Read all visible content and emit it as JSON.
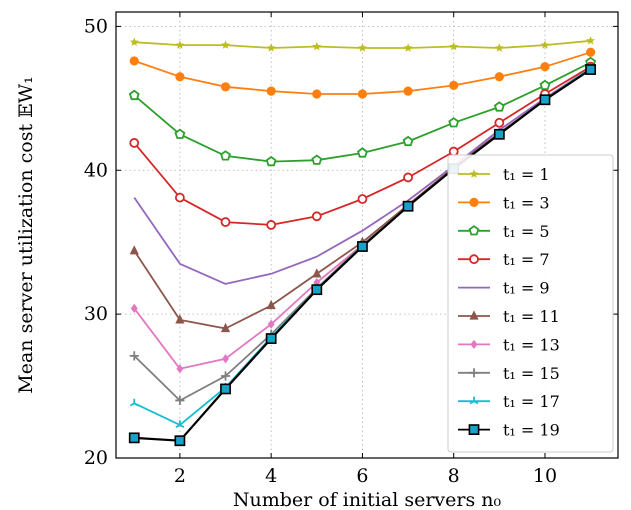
{
  "chart_data": {
    "type": "line",
    "xlabel": "Number of initial servers n₀",
    "ylabel": "Mean server utilization cost 𝔼W₁",
    "xlim": [
      0.6,
      11.6
    ],
    "ylim": [
      20,
      51
    ],
    "xticks": [
      2,
      4,
      6,
      8,
      10
    ],
    "yticks": [
      20,
      30,
      40,
      50
    ],
    "grid": true,
    "legend_position": "right",
    "x": [
      1,
      2,
      3,
      4,
      5,
      6,
      7,
      8,
      9,
      10,
      11
    ],
    "series": [
      {
        "name": "t₁ = 1",
        "color": "#bcbd22",
        "marker": "star",
        "values": [
          48.9,
          48.7,
          48.7,
          48.5,
          48.6,
          48.5,
          48.5,
          48.6,
          48.5,
          48.7,
          49.0
        ]
      },
      {
        "name": "t₁ = 3",
        "color": "#ff7f0e",
        "marker": "circle",
        "values": [
          47.6,
          46.5,
          45.8,
          45.5,
          45.3,
          45.3,
          45.5,
          45.9,
          46.5,
          47.2,
          48.2
        ]
      },
      {
        "name": "t₁ = 5",
        "color": "#2ca02c",
        "marker": "pentagon",
        "values": [
          45.2,
          42.5,
          41.0,
          40.6,
          40.7,
          41.2,
          42.0,
          43.3,
          44.4,
          45.9,
          47.5
        ]
      },
      {
        "name": "t₁ = 7",
        "color": "#d62728",
        "marker": "ocircle",
        "values": [
          41.9,
          38.1,
          36.4,
          36.2,
          36.8,
          38.0,
          39.5,
          41.3,
          43.3,
          45.3,
          47.2
        ]
      },
      {
        "name": "t₁ = 9",
        "color": "#9467bd",
        "marker": "none",
        "values": [
          38.1,
          33.5,
          32.1,
          32.8,
          34.0,
          35.8,
          37.9,
          40.3,
          42.8,
          45.0,
          47.1
        ]
      },
      {
        "name": "t₁ = 11",
        "color": "#8c564b",
        "marker": "triangle",
        "values": [
          34.4,
          29.6,
          29.0,
          30.6,
          32.8,
          35.0,
          37.6,
          40.2,
          42.6,
          44.9,
          47.1
        ]
      },
      {
        "name": "t₁ = 13",
        "color": "#e377c2",
        "marker": "diamond",
        "values": [
          30.4,
          26.2,
          26.9,
          29.3,
          32.2,
          34.8,
          37.5,
          40.1,
          42.5,
          44.9,
          47.1
        ]
      },
      {
        "name": "t₁ = 15",
        "color": "#7f7f7f",
        "marker": "plus",
        "values": [
          27.1,
          24.0,
          25.7,
          28.6,
          31.8,
          34.8,
          37.5,
          40.1,
          42.5,
          44.9,
          47.1
        ]
      },
      {
        "name": "t₁ = 17",
        "color": "#17becf",
        "marker": "tri",
        "values": [
          23.8,
          22.3,
          24.9,
          28.4,
          31.7,
          34.7,
          37.5,
          40.1,
          42.5,
          44.9,
          47.1
        ]
      },
      {
        "name": "t₁ = 19",
        "color": "#000000",
        "marker": "square",
        "values": [
          21.4,
          21.2,
          24.8,
          28.3,
          31.7,
          34.7,
          37.5,
          40.1,
          42.5,
          44.9,
          47.0
        ]
      }
    ]
  }
}
